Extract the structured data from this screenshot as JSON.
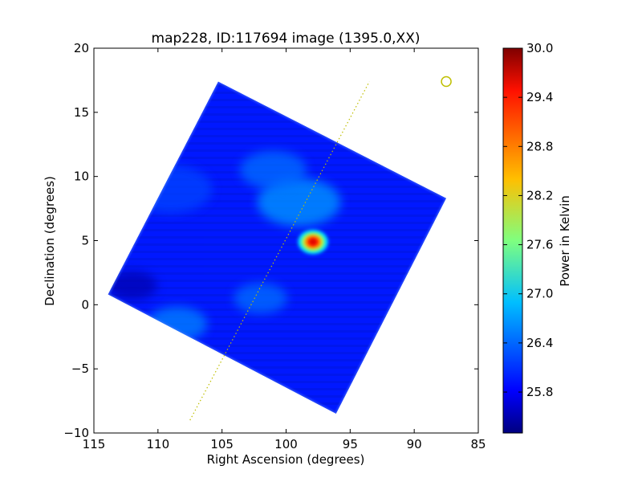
{
  "chart_data": {
    "type": "heatmap",
    "title": "map228, ID:117694 image (1395.0,XX)",
    "xlabel": "Right Ascension (degrees)",
    "ylabel": "Declination (degrees)",
    "xlim": [
      115,
      85
    ],
    "ylim": [
      -10,
      20
    ],
    "xticks": [
      115,
      110,
      105,
      100,
      95,
      90,
      85
    ],
    "xtick_labels": [
      "115",
      "110",
      "105",
      "100",
      "95",
      "90",
      "85"
    ],
    "yticks": [
      20,
      15,
      10,
      5,
      0,
      -5,
      -10
    ],
    "ytick_labels": [
      "20",
      "15",
      "10",
      "5",
      "0",
      "−5",
      "−10"
    ],
    "map_corners": [
      [
        105.3,
        17.4
      ],
      [
        87.5,
        8.3
      ],
      [
        96.1,
        -8.5
      ],
      [
        113.9,
        0.8
      ]
    ],
    "background_level": 26.0,
    "features": [
      {
        "ra": 97.9,
        "dec": 4.9,
        "peak": 29.6,
        "sigma": 0.9
      },
      {
        "ra": 99.0,
        "dec": 8.0,
        "peak": 26.6,
        "sigma": 2.5
      },
      {
        "ra": 101.0,
        "dec": 10.5,
        "peak": 26.4,
        "sigma": 2.0
      },
      {
        "ra": 102.0,
        "dec": 0.5,
        "peak": 26.4,
        "sigma": 1.6
      },
      {
        "ra": 108.5,
        "dec": -1.5,
        "peak": 26.5,
        "sigma": 1.8
      },
      {
        "ra": 109.0,
        "dec": 9.0,
        "peak": 26.2,
        "sigma": 2.5
      },
      {
        "ra": 112.0,
        "dec": 1.5,
        "peak": 25.5,
        "sigma": 1.5
      }
    ],
    "galactic_plane_line": [
      [
        107.5,
        -9.0
      ],
      [
        93.5,
        17.4
      ]
    ],
    "marker_circle": {
      "ra": 87.5,
      "dec": 17.4
    },
    "overlay_color": "#bfbf00",
    "colorbar": {
      "label": "Power in Kelvin",
      "min": 25.3,
      "max": 30.0,
      "ticks": [
        30.0,
        29.4,
        28.8,
        28.2,
        27.6,
        27.0,
        26.4,
        25.8
      ],
      "tick_labels": [
        "30.0",
        "29.4",
        "28.8",
        "28.2",
        "27.6",
        "27.0",
        "26.4",
        "25.8"
      ],
      "colormap": "jet"
    }
  }
}
